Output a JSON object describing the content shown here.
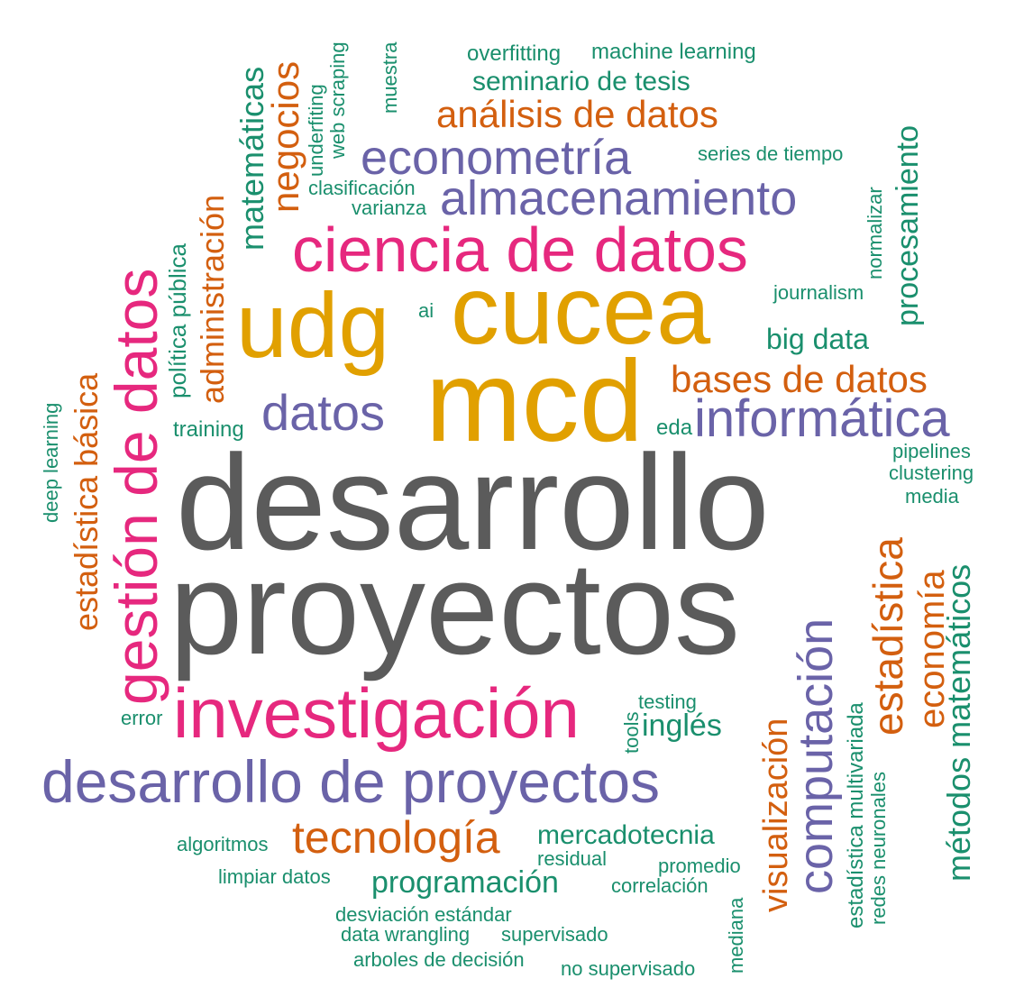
{
  "palette": {
    "gray": "#5b5b5b",
    "gold": "#e1a000",
    "pink": "#e6287e",
    "purple": "#6a63a8",
    "orange": "#d35f0f",
    "green": "#1a8f6d"
  },
  "words": {
    "desarrollo": "desarrollo",
    "proyectos": "proyectos",
    "mcd": "mcd",
    "cucea": "cucea",
    "udg": "udg",
    "ciencia_de_datos": "ciencia de datos",
    "investigacion": "investigación",
    "desarrollo_de_proyectos": "desarrollo de proyectos",
    "gestion_de_datos": "gestión de datos",
    "econometria": "econometría",
    "almacenamiento": "almacenamiento",
    "informatica": "informática",
    "datos": "datos",
    "analisis_de_datos": "análisis de datos",
    "bases_de_datos": "bases de datos",
    "tecnologia": "tecnología",
    "computacion": "computación",
    "estadistica": "estadística",
    "economia": "economía",
    "metodos_matematicos": "métodos matemáticos",
    "visualizacion": "visualización",
    "administracion": "administración",
    "negocios": "negocios",
    "matematicas": "matemáticas",
    "estadistica_basica": "estadística básica",
    "politica_publica": "política pública",
    "procesamiento": "procesamiento",
    "programacion": "programación",
    "mercadotecnia": "mercadotecnia",
    "ingles": "inglés",
    "big_data": "big data",
    "seminario_de_tesis": "seminario de tesis",
    "overfitting": "overfitting",
    "machine_learning": "machine learning",
    "series_de_tiempo": "series de tiempo",
    "clasificacion": "clasificación",
    "varianza": "varianza",
    "underfiting": "underfiting",
    "web_scraping": "web scraping",
    "muestra": "muestra",
    "normalizar": "normalizar",
    "journalism": "journalism",
    "ai": "ai",
    "training": "training",
    "eda": "eda",
    "pipelines": "pipelines",
    "clustering": "clustering",
    "media": "media",
    "deep_learning": "deep learning",
    "error": "error",
    "testing": "testing",
    "tools": "tools",
    "algoritmos": "algoritmos",
    "limpiar_datos": "limpiar datos",
    "residual": "residual",
    "promedio": "promedio",
    "correlacion": "correlación",
    "desviacion_estandar": "desviación estándar",
    "data_wrangling": "data wrangling",
    "supervisado": "supervisado",
    "arboles_de_decision": "arboles de decisión",
    "no_supervisado": "no supervisado",
    "mediana": "mediana",
    "estadistica_multivariada": "estadística multivariada",
    "redes_neuronales": "redes neuronales"
  }
}
